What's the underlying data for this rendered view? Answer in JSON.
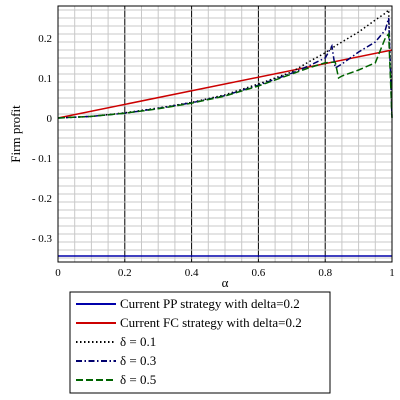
{
  "chart_data": {
    "type": "line",
    "title": "",
    "xlabel": "α",
    "ylabel": "Firm profit",
    "xlim": [
      0,
      1
    ],
    "ylim": [
      -0.36,
      0.28
    ],
    "x_ticks": [
      0,
      0.2,
      0.4,
      0.6,
      0.8,
      1
    ],
    "x_tick_labels": [
      "0",
      "0.2",
      "0.4",
      "0.6",
      "0.8",
      "1"
    ],
    "y_ticks": [
      -0.3,
      -0.2,
      -0.1,
      0,
      0.1,
      0.2
    ],
    "y_tick_labels": [
      "- 0.3",
      "- 0.2",
      "- 0.1",
      "0",
      "0.1",
      "0.2"
    ],
    "grid": true,
    "legend_position": "bottom",
    "series": [
      {
        "name": "Current PP strategy with delta=0.2",
        "color": "#0000aa",
        "dash": "solid",
        "x": [
          0,
          1
        ],
        "y": [
          -0.345,
          -0.345
        ]
      },
      {
        "name": "Current FC strategy with delta=0.2",
        "color": "#cc0000",
        "dash": "solid",
        "x": [
          0,
          1
        ],
        "y": [
          0,
          0.17
        ]
      },
      {
        "name": "δ = 0.1",
        "color": "#000000",
        "dash": "dot",
        "x": [
          0,
          0.1,
          0.2,
          0.3,
          0.4,
          0.5,
          0.6,
          0.7,
          0.75,
          0.8,
          0.83,
          0.85,
          0.9,
          0.95,
          0.98,
          0.99,
          1.0
        ],
        "y": [
          0,
          0.004,
          0.013,
          0.025,
          0.039,
          0.058,
          0.085,
          0.115,
          0.14,
          0.163,
          0.18,
          0.19,
          0.215,
          0.245,
          0.262,
          0.27,
          0.0
        ]
      },
      {
        "name": "δ = 0.3",
        "color": "#00006e",
        "dash": "dashdot",
        "x": [
          0,
          0.1,
          0.2,
          0.3,
          0.4,
          0.5,
          0.6,
          0.7,
          0.75,
          0.8,
          0.82,
          0.83,
          0.85,
          0.9,
          0.95,
          0.98,
          0.99,
          1.0
        ],
        "y": [
          0,
          0.004,
          0.012,
          0.024,
          0.038,
          0.056,
          0.082,
          0.112,
          0.13,
          0.15,
          0.18,
          0.125,
          0.135,
          0.165,
          0.19,
          0.22,
          0.25,
          0.0
        ]
      },
      {
        "name": "δ = 0.5",
        "color": "#006400",
        "dash": "dash",
        "x": [
          0,
          0.1,
          0.2,
          0.3,
          0.4,
          0.5,
          0.6,
          0.7,
          0.75,
          0.8,
          0.83,
          0.84,
          0.85,
          0.9,
          0.95,
          0.98,
          0.99,
          1.0
        ],
        "y": [
          0,
          0.004,
          0.012,
          0.023,
          0.037,
          0.055,
          0.08,
          0.11,
          0.125,
          0.138,
          0.14,
          0.1,
          0.105,
          0.12,
          0.138,
          0.2,
          0.21,
          0.0
        ]
      }
    ]
  }
}
